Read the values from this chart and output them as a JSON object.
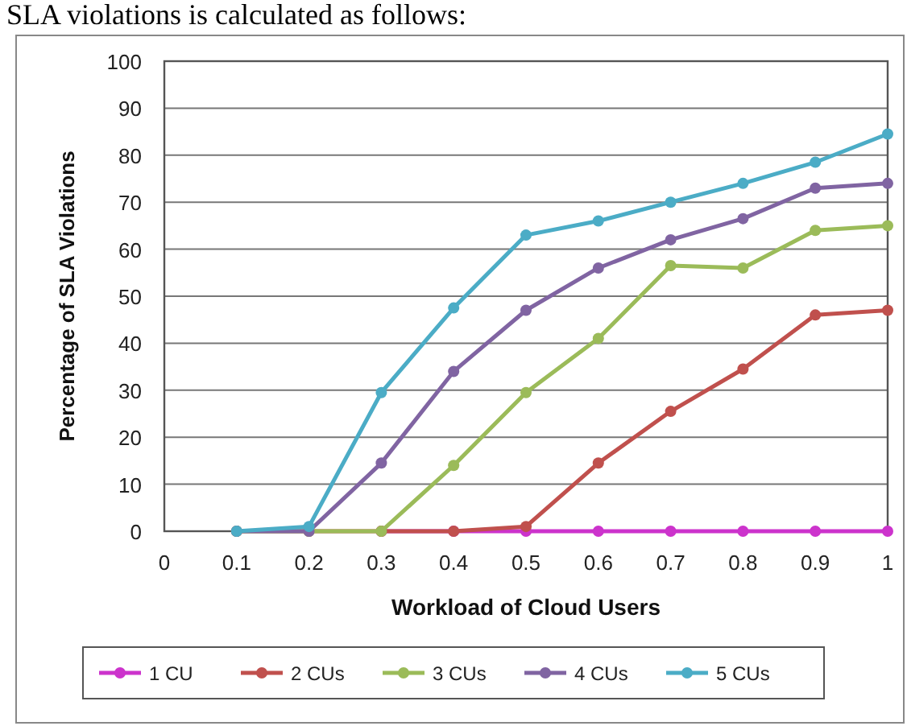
{
  "chart_data": {
    "type": "line",
    "xlabel": "Workload of Cloud Users",
    "ylabel": "Percentage of SLA Violations",
    "annotations": [
      "SLA violations is calculated as follows:"
    ],
    "x": [
      0.1,
      0.2,
      0.3,
      0.4,
      0.5,
      0.6,
      0.7,
      0.8,
      0.9,
      1
    ],
    "xlim": [
      0,
      1
    ],
    "xticks": [
      0,
      0.1,
      0.2,
      0.3,
      0.4,
      0.5,
      0.6,
      0.7,
      0.8,
      0.9,
      1
    ],
    "ylim": [
      0,
      100
    ],
    "yticks": [
      0,
      10,
      20,
      30,
      40,
      50,
      60,
      70,
      80,
      90,
      100
    ],
    "grid": "y",
    "legend": "bottom",
    "marker": "circle",
    "line_style": "solid",
    "series": [
      {
        "name": "1 CU",
        "color": "#cc33cc",
        "values": [
          null,
          null,
          0,
          0,
          0,
          0,
          0,
          0,
          0,
          0
        ]
      },
      {
        "name": "2 CUs",
        "color": "#c0504d",
        "values": [
          0,
          0,
          0,
          0,
          1,
          14.5,
          25.5,
          34.5,
          46,
          47
        ]
      },
      {
        "name": "3 CUs",
        "color": "#9bbb59",
        "values": [
          0,
          0,
          0,
          14,
          29.5,
          41,
          56.5,
          56,
          64,
          65
        ]
      },
      {
        "name": "4 CUs",
        "color": "#8064a2",
        "values": [
          0,
          0,
          14.5,
          34,
          47,
          56,
          62,
          66.5,
          73,
          74
        ]
      },
      {
        "name": "5 CUs",
        "color": "#4bacc6",
        "values": [
          0,
          1,
          29.5,
          47.5,
          63,
          66,
          70,
          74,
          78.5,
          84.5
        ]
      }
    ]
  }
}
